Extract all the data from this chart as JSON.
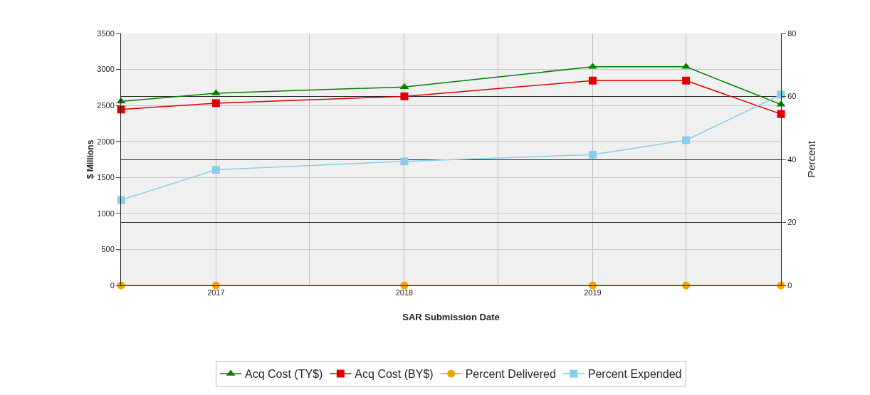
{
  "chart_data": {
    "type": "line",
    "xlabel": "SAR Submission Date",
    "ylabel": "$ Millions",
    "y2label": "Percent",
    "x": [
      "2016-07",
      "2017-01",
      "2018-01",
      "2019-01",
      "2019-07",
      "2020-01"
    ],
    "xlim": [
      "2016-07",
      "2020-01"
    ],
    "xticks": [
      {
        "value": "2017-01",
        "label": "2017"
      },
      {
        "value": "2017-07",
        "label": null
      },
      {
        "value": "2018-01",
        "label": "2018"
      },
      {
        "value": "2018-07",
        "label": null
      },
      {
        "value": "2019-01",
        "label": "2019"
      },
      {
        "value": "2019-07",
        "label": null
      }
    ],
    "ylim": [
      0,
      3500
    ],
    "yticks": [
      0,
      500,
      1000,
      1500,
      2000,
      2500,
      3000,
      3500
    ],
    "y2lim": [
      0,
      80
    ],
    "y2ticks": [
      0,
      20,
      40,
      60,
      80
    ],
    "series": [
      {
        "name": "Acq Cost (TY$)",
        "color": "#008000",
        "marker": "triangle",
        "values": [
          2555,
          2670,
          2757,
          3037,
          3037,
          2513
        ]
      },
      {
        "name": "Acq Cost (BY$)",
        "color": "#e00000",
        "marker": "square",
        "values": [
          2444,
          2532,
          2626,
          2845,
          2845,
          2381
        ]
      },
      {
        "name": "Percent Delivered",
        "color": "#f0a500",
        "marker": "circle",
        "axis": "y2",
        "values": [
          0,
          0,
          0,
          0,
          0,
          0
        ]
      },
      {
        "name": "Percent Expended",
        "color": "#87ceeb",
        "marker": "square",
        "axis": "y2",
        "values": [
          27.1,
          36.7,
          39.4,
          41.5,
          46.1,
          60.6
        ]
      }
    ],
    "grid": true,
    "legend": "bottom"
  }
}
